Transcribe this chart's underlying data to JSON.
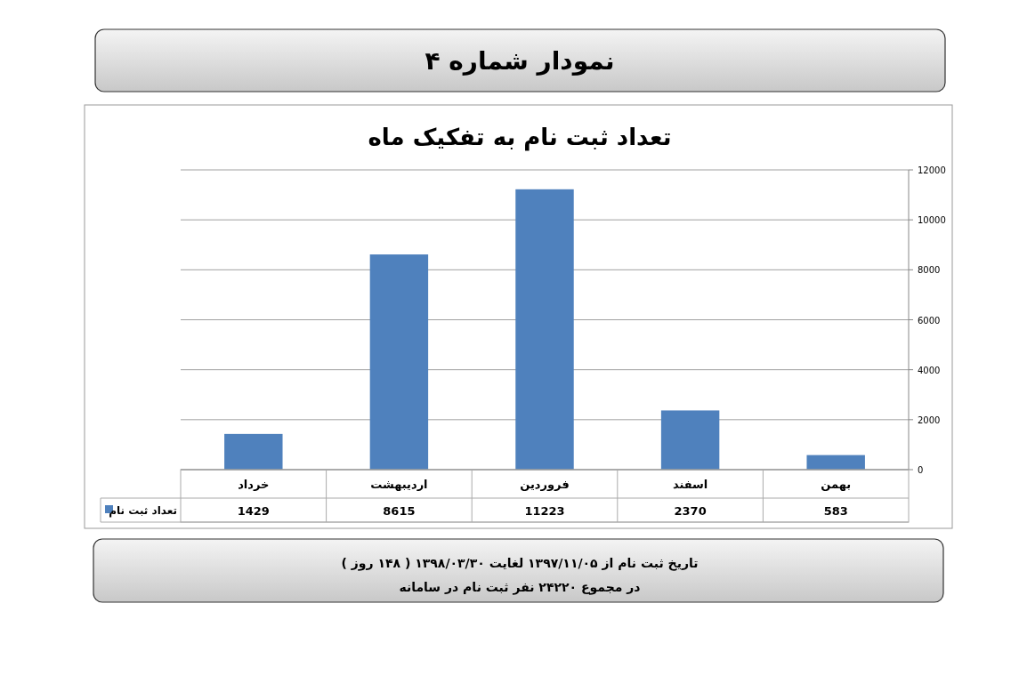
{
  "chart_data": {
    "type": "bar",
    "title": "تعداد ثبت نام به تفکیک ماه",
    "annotations": [
      "نمودار شماره ۴",
      "تاریخ ثبت نام از ۱۳۹۷/۱۱/۰۵ لغایت ۱۳۹۸/۰۳/۳۰ ( ۱۴۸ روز )",
      "در مجموع ۲۴۲۲۰ نفر ثبت نام در سامانه"
    ],
    "categories": [
      "خرداد",
      "اردیبهشت",
      "فروردین",
      "اسفند",
      "بهمن"
    ],
    "series": [
      {
        "name": "تعداد ثبت نام",
        "color": "#4f81bd",
        "values": [
          1429,
          8615,
          11223,
          2370,
          583
        ]
      }
    ],
    "ylim": [
      0,
      12000
    ],
    "yticks": [
      0,
      2000,
      4000,
      6000,
      8000,
      10000,
      12000
    ],
    "grid": "y",
    "legend": "bottom left",
    "data_labels": true
  }
}
